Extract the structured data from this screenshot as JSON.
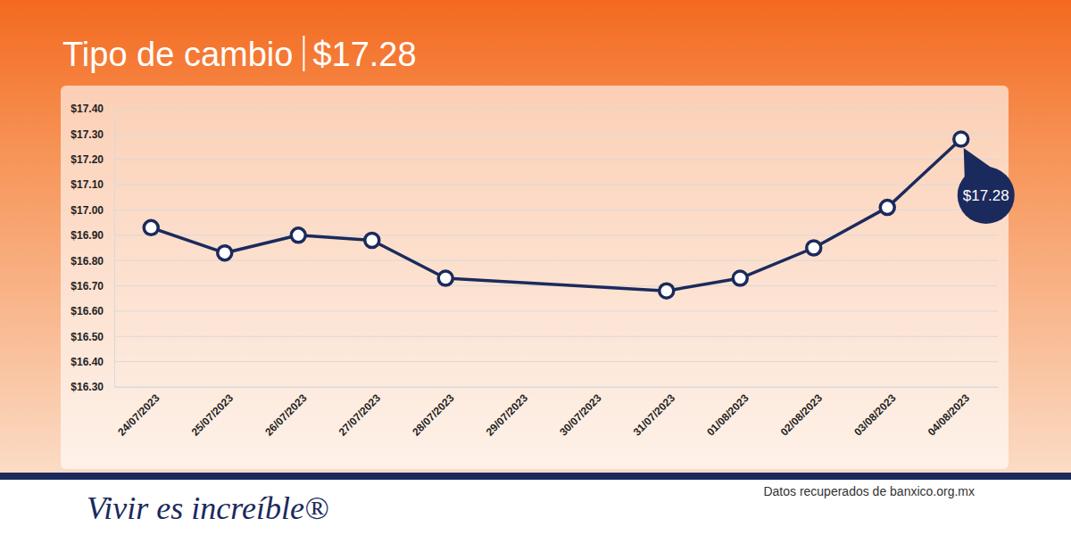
{
  "chart_data": {
    "type": "line",
    "title": "Tipo de cambio",
    "subtitle": "$17.28",
    "categories": [
      "24/07/2023",
      "25/07/2023",
      "26/07/2023",
      "27/07/2023",
      "28/07/2023",
      "29/07/2023",
      "30/07/2023",
      "31/07/2023",
      "01/08/2023",
      "02/08/2023",
      "03/08/2023",
      "04/08/2023"
    ],
    "values": [
      16.93,
      16.83,
      16.9,
      16.88,
      16.73,
      null,
      null,
      16.68,
      16.73,
      16.85,
      17.01,
      17.28
    ],
    "color": "#1b2a5c",
    "marker": "circle",
    "ylim": [
      16.3,
      17.4
    ],
    "yticks": [
      {
        "value": 16.3,
        "label": "$16.30"
      },
      {
        "value": 16.4,
        "label": "$16.40"
      },
      {
        "value": 16.5,
        "label": "$16.50"
      },
      {
        "value": 16.6,
        "label": "$16.60"
      },
      {
        "value": 16.7,
        "label": "$16.70"
      },
      {
        "value": 16.8,
        "label": "$16.80"
      },
      {
        "value": 16.9,
        "label": "$16.90"
      },
      {
        "value": 17.0,
        "label": "$17.00"
      },
      {
        "value": 17.1,
        "label": "$17.10"
      },
      {
        "value": 17.2,
        "label": "$17.20"
      },
      {
        "value": 17.3,
        "label": "$17.30"
      },
      {
        "value": 17.4,
        "label": "$17.40"
      }
    ],
    "grid": true,
    "data_labels": true,
    "value_labels": [
      null,
      null,
      null,
      null,
      null,
      null,
      null,
      null,
      null,
      null,
      null,
      "$17.28"
    ],
    "source": "Datos recuperados de banxico.org.mx"
  },
  "footer": {
    "brand": "Vivir es increíble®"
  }
}
